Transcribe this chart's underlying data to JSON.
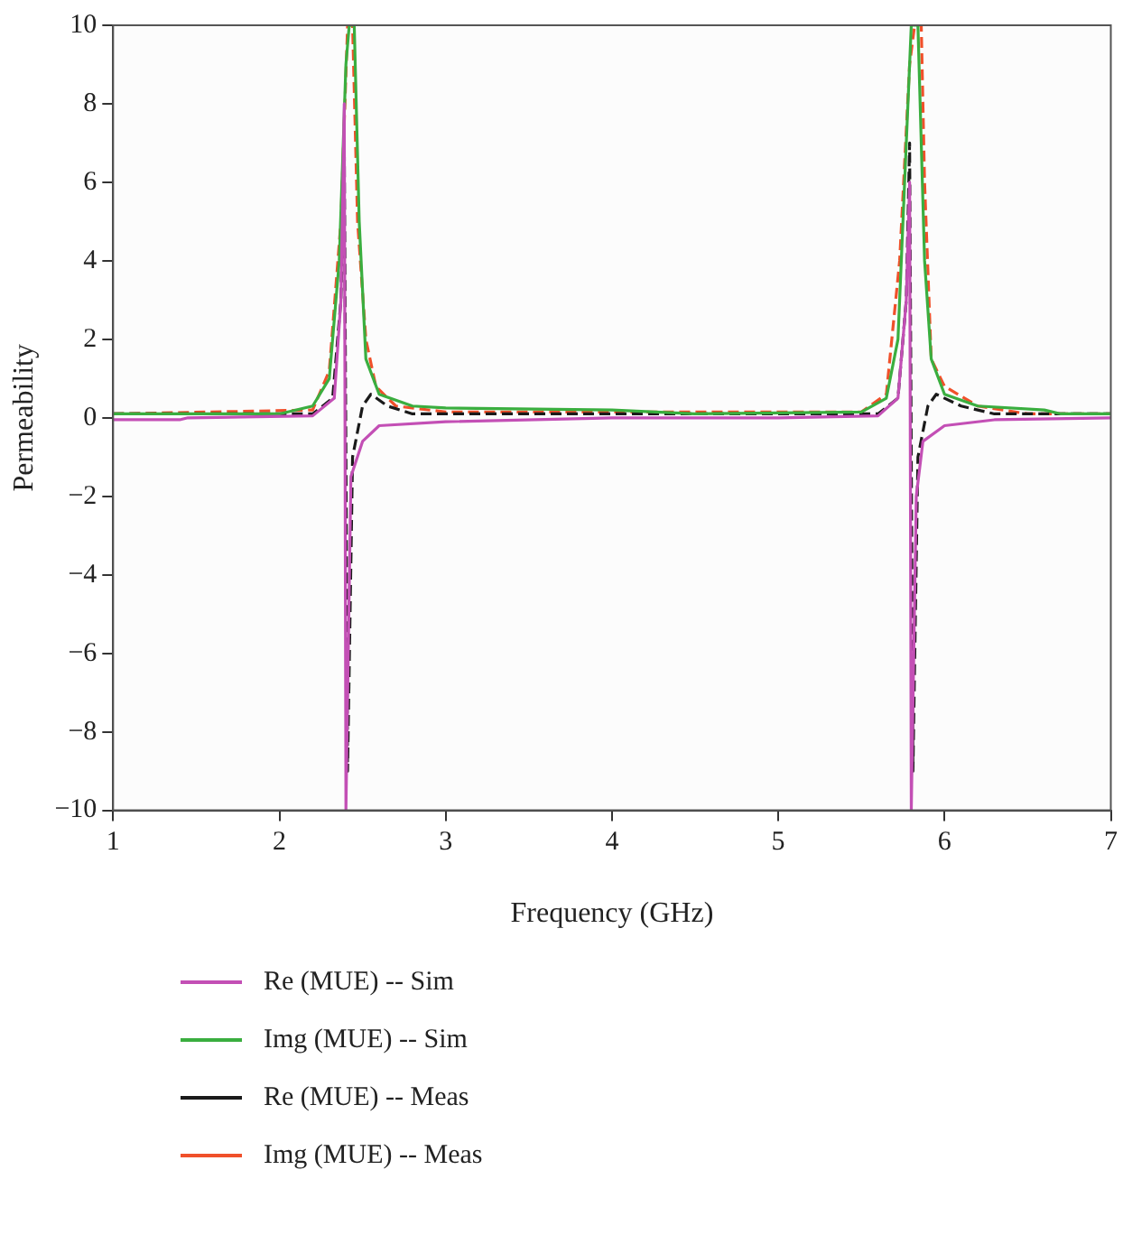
{
  "chart_data": {
    "type": "line",
    "xlabel": "Frequency (GHz)",
    "ylabel": "Permeability",
    "xlim": [
      1,
      7
    ],
    "xticks": [
      1,
      2,
      3,
      4,
      5,
      6,
      7
    ],
    "ylim": [
      -10,
      10
    ],
    "yticks": [
      -10,
      -8,
      -6,
      -4,
      -2,
      0,
      2,
      4,
      6,
      8,
      10
    ],
    "grid": false,
    "legend": "bottom",
    "marker": "none",
    "series": [
      {
        "name": "Re (MUE) -- Sim",
        "color": "#c34fb5",
        "line_style": "solid",
        "x": [
          1,
          1.4,
          1.45,
          2.2,
          2.33,
          2.37,
          2.39,
          2.4,
          2.43,
          2.5,
          2.6,
          3,
          4,
          5,
          5.6,
          5.72,
          5.77,
          5.79,
          5.8,
          5.83,
          5.87,
          6,
          6.3,
          7
        ],
        "values": [
          -0.05,
          -0.05,
          0,
          0.05,
          0.5,
          3,
          8,
          -10,
          -1.5,
          -0.6,
          -0.2,
          -0.1,
          0,
          0,
          0.05,
          0.5,
          3,
          6,
          -10,
          -2,
          -0.6,
          -0.2,
          -0.05,
          0
        ]
      },
      {
        "name": "Img (MUE) -- Sim",
        "color": "#3aae3f",
        "line_style": "solid",
        "x": [
          1,
          2,
          2.2,
          2.3,
          2.36,
          2.4,
          2.42,
          2.45,
          2.48,
          2.52,
          2.6,
          2.8,
          3,
          4,
          4.5,
          5.5,
          5.65,
          5.72,
          5.78,
          5.8,
          5.84,
          5.88,
          5.92,
          6,
          6.2,
          6.6,
          6.7,
          7
        ],
        "values": [
          0.1,
          0.1,
          0.3,
          1,
          4,
          9,
          10,
          10,
          5,
          1.5,
          0.6,
          0.3,
          0.25,
          0.2,
          0.1,
          0.15,
          0.5,
          2,
          8,
          10,
          10,
          4,
          1.5,
          0.6,
          0.3,
          0.2,
          0.1,
          0.1
        ]
      },
      {
        "name": "Re (MUE) -- Meas",
        "color": "#1a1a1a",
        "line_style": "dashed",
        "x": [
          1,
          2.2,
          2.32,
          2.37,
          2.39,
          2.41,
          2.44,
          2.5,
          2.55,
          2.65,
          2.8,
          5.6,
          5.72,
          5.77,
          5.79,
          5.81,
          5.84,
          5.9,
          5.95,
          6.1,
          6.3,
          7
        ],
        "values": [
          0.1,
          0.1,
          0.5,
          3,
          7,
          -9,
          -1,
          0.3,
          0.6,
          0.3,
          0.1,
          0.1,
          0.5,
          3,
          7,
          -9,
          -1,
          0.3,
          0.6,
          0.3,
          0.1,
          0.1
        ]
      },
      {
        "name": "Img (MUE) -- Meas",
        "color": "#f0502a",
        "line_style": "dashed",
        "x": [
          1,
          2.2,
          2.3,
          2.37,
          2.41,
          2.44,
          2.47,
          2.52,
          2.58,
          2.7,
          3,
          5.5,
          5.65,
          5.73,
          5.79,
          5.82,
          5.86,
          5.88,
          5.92,
          6,
          6.2,
          6.5,
          7
        ],
        "values": [
          0.1,
          0.2,
          1.2,
          5,
          10,
          10,
          5,
          2,
          0.8,
          0.3,
          0.15,
          0.15,
          0.6,
          4,
          9,
          10,
          10,
          6,
          1.5,
          0.8,
          0.3,
          0.1,
          0.1
        ]
      }
    ]
  }
}
